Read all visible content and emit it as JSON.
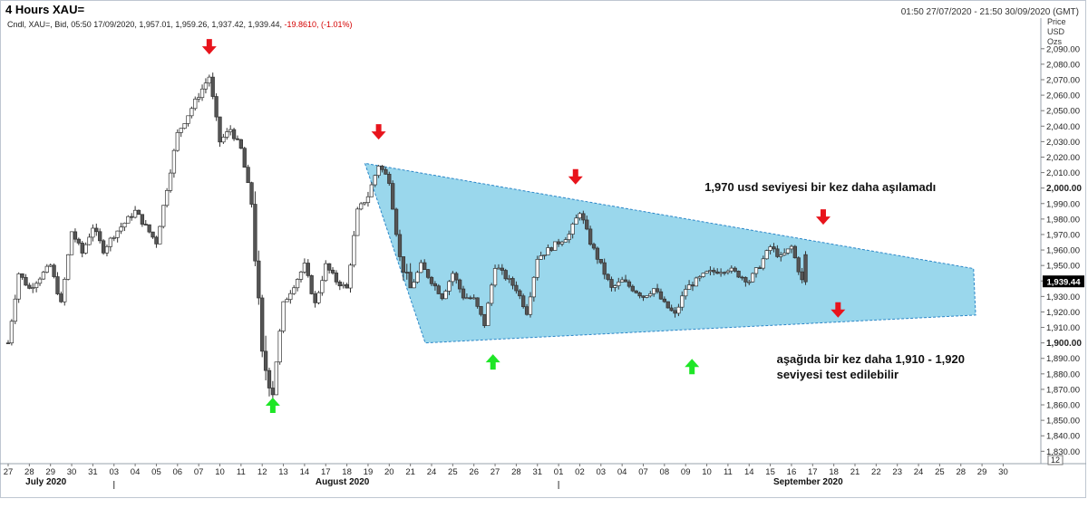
{
  "header": {
    "title": "4 Hours XAU=",
    "date_range": "01:50 27/07/2020 - 21:50 30/09/2020 (GMT)",
    "legend_prefix": "Cndl, XAU=, Bid, 05:50 17/09/2020, 1,957.01, 1,959.26, 1,937.42, 1,939.44, ",
    "legend_change": "-19.8610, (-1.01%)"
  },
  "axis_unit": {
    "line1": "Price",
    "line2": "USD",
    "line3": "Ozs"
  },
  "colors": {
    "triangle_fill": "#8fd3ea",
    "triangle_edge": "#2a86c8",
    "down_arrow": "#e8141c",
    "up_arrow": "#1ee626",
    "candle_up": "#ffffff",
    "candle_down": "#555555"
  },
  "chart_data": {
    "type": "candlestick",
    "title": "4 Hours XAU=",
    "ylabel": "Price USD Ozs",
    "ylim": [
      1822,
      2101
    ],
    "y_ticks": [
      "1,830.00",
      "1,840.00",
      "1,850.00",
      "1,860.00",
      "1,870.00",
      "1,880.00",
      "1,890.00",
      "1,900.00",
      "1,910.00",
      "1,920.00",
      "1,930.00",
      "1,940.00",
      "1,950.00",
      "1,960.00",
      "1,970.00",
      "1,980.00",
      "1,990.00",
      "2,000.00",
      "2,010.00",
      "2,020.00",
      "2,030.00",
      "2,040.00",
      "2,050.00",
      "2,060.00",
      "2,070.00",
      "2,080.00",
      "2,090.00"
    ],
    "y_bold_ticks": [
      "1,900.00",
      "2,000.00"
    ],
    "last_price_label": "1,939.44",
    "x_ticks": [
      "27",
      "28",
      "29",
      "30",
      "31",
      "03",
      "04",
      "05",
      "06",
      "07",
      "10",
      "11",
      "12",
      "13",
      "14",
      "17",
      "18",
      "19",
      "20",
      "21",
      "24",
      "25",
      "26",
      "27",
      "28",
      "31",
      "01",
      "02",
      "03",
      "04",
      "07",
      "08",
      "09",
      "10",
      "11",
      "14",
      "15",
      "16",
      "17",
      "18",
      "21",
      "22",
      "23",
      "24",
      "25",
      "28",
      "29",
      "30"
    ],
    "month_labels": [
      {
        "label": "July 2020",
        "at_tick": 2
      },
      {
        "label": "August 2020",
        "at_tick": 16
      },
      {
        "label": "September 2020",
        "at_tick": 38
      }
    ],
    "corner_label": "12",
    "anchors": [
      [
        0,
        1900
      ],
      [
        0.5,
        1945
      ],
      [
        1,
        1935
      ],
      [
        2,
        1950
      ],
      [
        2.5,
        1925
      ],
      [
        3,
        1972
      ],
      [
        3.5,
        1958
      ],
      [
        4,
        1975
      ],
      [
        4.5,
        1960
      ],
      [
        5,
        1970
      ],
      [
        6,
        1985
      ],
      [
        7,
        1965
      ],
      [
        8,
        2035
      ],
      [
        9,
        2060
      ],
      [
        9.5,
        2072
      ],
      [
        10,
        2030
      ],
      [
        10.5,
        2038
      ],
      [
        11,
        2025
      ],
      [
        11.5,
        1990
      ],
      [
        12,
        1890
      ],
      [
        12.5,
        1870
      ],
      [
        13,
        1925
      ],
      [
        14,
        1950
      ],
      [
        14.5,
        1925
      ],
      [
        15,
        1950
      ],
      [
        15.5,
        1940
      ],
      [
        16,
        1935
      ],
      [
        16.5,
        1985
      ],
      [
        17,
        1995
      ],
      [
        17.5,
        2015
      ],
      [
        18,
        2005
      ],
      [
        18.5,
        1955
      ],
      [
        19,
        1935
      ],
      [
        19.5,
        1950
      ],
      [
        20,
        1940
      ],
      [
        20.5,
        1930
      ],
      [
        21,
        1945
      ],
      [
        21.5,
        1930
      ],
      [
        22,
        1928
      ],
      [
        22.5,
        1912
      ],
      [
        23,
        1950
      ],
      [
        24,
        1935
      ],
      [
        24.5,
        1920
      ],
      [
        25,
        1955
      ],
      [
        26,
        1965
      ],
      [
        26.5,
        1970
      ],
      [
        27,
        1985
      ],
      [
        27.5,
        1965
      ],
      [
        28,
        1950
      ],
      [
        28.5,
        1935
      ],
      [
        29,
        1940
      ],
      [
        30,
        1930
      ],
      [
        30.5,
        1935
      ],
      [
        31,
        1925
      ],
      [
        31.5,
        1918
      ],
      [
        32,
        1935
      ],
      [
        33,
        1945
      ],
      [
        34,
        1948
      ],
      [
        35,
        1940
      ],
      [
        35.5,
        1950
      ],
      [
        36,
        1962
      ],
      [
        36.5,
        1955
      ],
      [
        37,
        1962
      ],
      [
        37.5,
        1940
      ]
    ],
    "volatility": [
      [
        11.5,
        12.5,
        14
      ],
      [
        18.5,
        19,
        8
      ]
    ],
    "triangle": {
      "vertices": [
        [
          16.85,
          2016
        ],
        [
          19.7,
          1900
        ],
        [
          45.7,
          1918
        ],
        [
          45.6,
          1948
        ]
      ]
    },
    "signals": {
      "down_arrows": [
        [
          9.5,
          2091
        ],
        [
          17.5,
          2036
        ],
        [
          26.8,
          2007
        ],
        [
          38.5,
          1981
        ],
        [
          39.2,
          1921
        ]
      ],
      "up_arrows": [
        [
          12.5,
          1860
        ],
        [
          22.9,
          1888
        ],
        [
          32.3,
          1885
        ]
      ]
    },
    "annotations": [
      {
        "text": "1,970 usd seviyesi bir kez daha aşılamadı",
        "x": 32.9,
        "y": 1998
      },
      {
        "text": "aşağıda bir kez daha 1,910 - 1,920",
        "x": 36.3,
        "y": 1887
      },
      {
        "text": "seviyesi test edilebilir",
        "x": 36.3,
        "y": 1877
      }
    ]
  }
}
